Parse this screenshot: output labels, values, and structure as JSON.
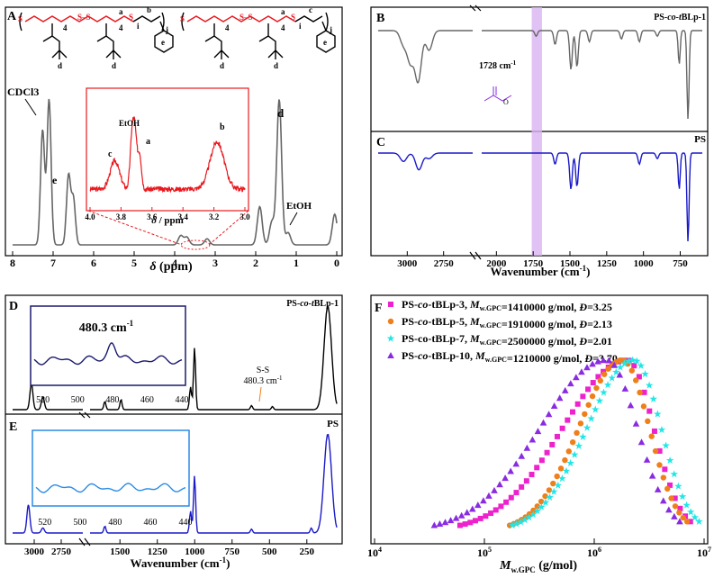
{
  "colors": {
    "gray": "#666666",
    "red": "#e8191f",
    "blue": "#1a1ac8",
    "navy": "#1a1a6e",
    "lightblue": "#2a8be6",
    "purple": "#8a2be2",
    "orange": "#f07f1a",
    "magenta": "#ee22cc",
    "cyan": "#22e6e6",
    "violet": "#8a2be2",
    "band": "#d9b3f2"
  },
  "panel_labels": {
    "A": "A",
    "B": "B",
    "C": "C",
    "D": "D",
    "E": "E",
    "F": "F"
  },
  "chart_data": [
    {
      "id": "A",
      "type": "line",
      "title": "",
      "xlabel_symbol": "δ",
      "xlabel_unit": "(ppm)",
      "x_ticks": [
        "8",
        "7",
        "6",
        "5",
        "4",
        "3",
        "2",
        "1",
        "0"
      ],
      "xlim": [
        8,
        0
      ],
      "peak_labels": {
        "cdcl3": "CDCl3",
        "e": "e",
        "d": "d",
        "etoh": "EtOH"
      },
      "struct_labels": {
        "a": "a",
        "b": "b",
        "c": "c",
        "d": "d",
        "e": "e",
        "n4": "4",
        "i": "i",
        "j": "j"
      },
      "peaks": [
        {
          "x": 7.26,
          "h": 0.75
        },
        {
          "x": 7.1,
          "h": 0.95
        },
        {
          "x": 6.62,
          "h": 0.45
        },
        {
          "x": 6.5,
          "h": 0.3
        },
        {
          "x": 3.85,
          "h": 0.06
        },
        {
          "x": 3.7,
          "h": 0.05
        },
        {
          "x": 3.2,
          "h": 0.04
        },
        {
          "x": 1.9,
          "h": 0.25
        },
        {
          "x": 1.6,
          "h": 0.15
        },
        {
          "x": 1.42,
          "h": 0.95
        },
        {
          "x": 1.2,
          "h": 0.08
        },
        {
          "x": 0.05,
          "h": 0.2
        }
      ],
      "inset": {
        "x_ticks": [
          "4.0",
          "3.8",
          "3.6",
          "3.4",
          "3.2",
          "3.0"
        ],
        "xlim": [
          4.0,
          3.0
        ],
        "xlabel_symbol": "δ",
        "xlabel_unit": "/ ppm",
        "labels": {
          "c": "c",
          "etoh": "EtOH",
          "a": "a",
          "b": "b"
        },
        "peaks": [
          {
            "x": 3.84,
            "h": 0.45
          },
          {
            "x": 3.73,
            "h": 0.75
          },
          {
            "x": 3.71,
            "h": 0.85
          },
          {
            "x": 3.68,
            "h": 0.55
          },
          {
            "x": 3.18,
            "h": 0.75
          }
        ]
      }
    },
    {
      "id": "B",
      "type": "line",
      "series_name": "PS-co-tBLp-1",
      "series_name_parts": [
        "PS-",
        [
          "co",
          "-t"
        ],
        "BLp-1"
      ],
      "annotation": "1728 cm-1",
      "annotation_number": "1728 cm",
      "annotation_exp": "-1",
      "dips": [
        {
          "x": 3026,
          "d": 0.25
        },
        {
          "x": 2978,
          "d": 0.55
        },
        {
          "x": 2925,
          "d": 0.9
        },
        {
          "x": 2850,
          "d": 0.35
        },
        {
          "x": 1730,
          "d": 0.1
        },
        {
          "x": 1601,
          "d": 0.25
        },
        {
          "x": 1493,
          "d": 0.7
        },
        {
          "x": 1452,
          "d": 0.65
        },
        {
          "x": 1368,
          "d": 0.2
        },
        {
          "x": 1150,
          "d": 0.15
        },
        {
          "x": 1028,
          "d": 0.2
        },
        {
          "x": 906,
          "d": 0.1
        },
        {
          "x": 757,
          "d": 0.6
        },
        {
          "x": 697,
          "d": 1.6
        }
      ]
    },
    {
      "id": "C",
      "type": "line",
      "series_name": "PS",
      "x_ticks": [
        "3000",
        "2750",
        "2000",
        "1750",
        "1500",
        "1250",
        "1000",
        "750"
      ],
      "xlabel": "Wavenumber",
      "xlabel_unit": "(cm",
      "xlabel_exp": "-1",
      "xlabel_close": ")",
      "dips": [
        {
          "x": 3026,
          "d": 0.15
        },
        {
          "x": 2920,
          "d": 0.3
        },
        {
          "x": 2850,
          "d": 0.1
        },
        {
          "x": 1601,
          "d": 0.2
        },
        {
          "x": 1493,
          "d": 0.65
        },
        {
          "x": 1452,
          "d": 0.6
        },
        {
          "x": 1028,
          "d": 0.2
        },
        {
          "x": 906,
          "d": 0.1
        },
        {
          "x": 757,
          "d": 0.65
        },
        {
          "x": 697,
          "d": 1.6
        }
      ]
    },
    {
      "id": "D",
      "type": "line",
      "series_name": "PS-co-tBLp-1",
      "series_name_parts": [
        "PS-",
        [
          "co",
          "-t"
        ],
        "BLp-1"
      ],
      "annotation": "S-S",
      "annotation2": "480.3 cm-1",
      "annotation2_number": "480.3 cm",
      "annotation2_exp": "-1",
      "inset": {
        "label": "480.3 cm-1",
        "label_number": "480.3 cm",
        "label_exp": "-1",
        "x_ticks": [
          "520",
          "500",
          "480",
          "460",
          "440"
        ],
        "xlim": [
          525,
          440
        ]
      },
      "peaks": [
        {
          "x": 3026,
          "h": 0.25
        },
        {
          "x": 2920,
          "h": 0.12
        },
        {
          "x": 1601,
          "h": 0.08
        },
        {
          "x": 1493,
          "h": 0.1
        },
        {
          "x": 1028,
          "h": 0.22
        },
        {
          "x": 1001,
          "h": 0.6
        },
        {
          "x": 620,
          "h": 0.04
        },
        {
          "x": 480,
          "h": 0.03
        },
        {
          "x": 110,
          "h": 1.0
        }
      ]
    },
    {
      "id": "E",
      "type": "line",
      "series_name": "PS",
      "x_ticks": [
        "3000",
        "2750",
        "1500",
        "1250",
        "1000",
        "750",
        "500",
        "250"
      ],
      "xlabel": "Wavenumber",
      "xlabel_unit": "(cm",
      "xlabel_exp": "-1",
      "xlabel_close": ")",
      "inset": {
        "x_ticks": [
          "520",
          "500",
          "480",
          "460",
          "440"
        ],
        "xlim": [
          525,
          440
        ]
      },
      "peaks": [
        {
          "x": 3054,
          "h": 0.28
        },
        {
          "x": 2920,
          "h": 0.05
        },
        {
          "x": 1601,
          "h": 0.07
        },
        {
          "x": 1028,
          "h": 0.22
        },
        {
          "x": 1001,
          "h": 0.58
        },
        {
          "x": 620,
          "h": 0.04
        },
        {
          "x": 220,
          "h": 0.05
        },
        {
          "x": 110,
          "h": 1.0
        }
      ]
    },
    {
      "id": "F",
      "type": "scatter",
      "xscale": "log",
      "xlim": [
        10000,
        10000000
      ],
      "x_ticks": [
        "10",
        "10",
        "10",
        "10"
      ],
      "x_tick_exps": [
        "4",
        "5",
        "6",
        "7"
      ],
      "xlabel_main": "M",
      "xlabel_sub": "w.GPC",
      "xlabel_unit": " (g/mol)",
      "series": [
        {
          "name": "PS-co-tBLp-3, Mw.GPC=1410000 g/mol, Đ=3.25",
          "name_parts": [
            "PS-",
            [
              "co"
            ],
            "-tBLp-3, ",
            [
              "M"
            ],
            [
              "w.GPC"
            ],
            "=1410000 g/mol, ",
            [
              "Đ"
            ],
            "=3.25"
          ],
          "marker": "square",
          "color": "#ee22cc",
          "xmin": 60000,
          "xpeak": 2000000,
          "xmax": 7500000,
          "w": 0.75
        },
        {
          "name": "PS-co-tBLp-5, Mw.GPC=1910000 g/mol, Đ=2.13",
          "name_parts": [
            "PS-",
            [
              "co"
            ],
            "-tBLp-5, ",
            [
              "M"
            ],
            [
              "w.GPC"
            ],
            "=1910000 g/mol, ",
            [
              "Đ"
            ],
            "=2.13"
          ],
          "marker": "circle",
          "color": "#f07f1a",
          "xmin": 170000,
          "xpeak": 1800000,
          "xmax": 7000000,
          "w": 0.55
        },
        {
          "name": "PS-co-tBLp-7, Mw.GPC=2500000 g/mol, Đ=2.01",
          "name_parts": [
            "PS-co-tBLp-7, ",
            [
              "M"
            ],
            [
              "w.GPC"
            ],
            "=2500000 g/mol, ",
            [
              "Đ"
            ],
            "=2.01"
          ],
          "marker": "star",
          "color": "#22e6e6",
          "xmin": 180000,
          "xpeak": 2300000,
          "xmax": 9000000,
          "w": 0.5
        },
        {
          "name": "PS-co-tBLp-10, Mw.GPC=1210000 g/mol, Đ=3.70",
          "name_parts": [
            "PS-",
            [
              "co"
            ],
            "-tBLp-10, ",
            [
              "M"
            ],
            [
              "w.GPC"
            ],
            "=1210000 g/mol, ",
            [
              "Đ"
            ],
            "=3.70"
          ],
          "marker": "triangle",
          "color": "#8a2be2",
          "xmin": 35000,
          "xpeak": 1300000,
          "xmax": 6000000,
          "w": 0.8
        }
      ]
    }
  ]
}
